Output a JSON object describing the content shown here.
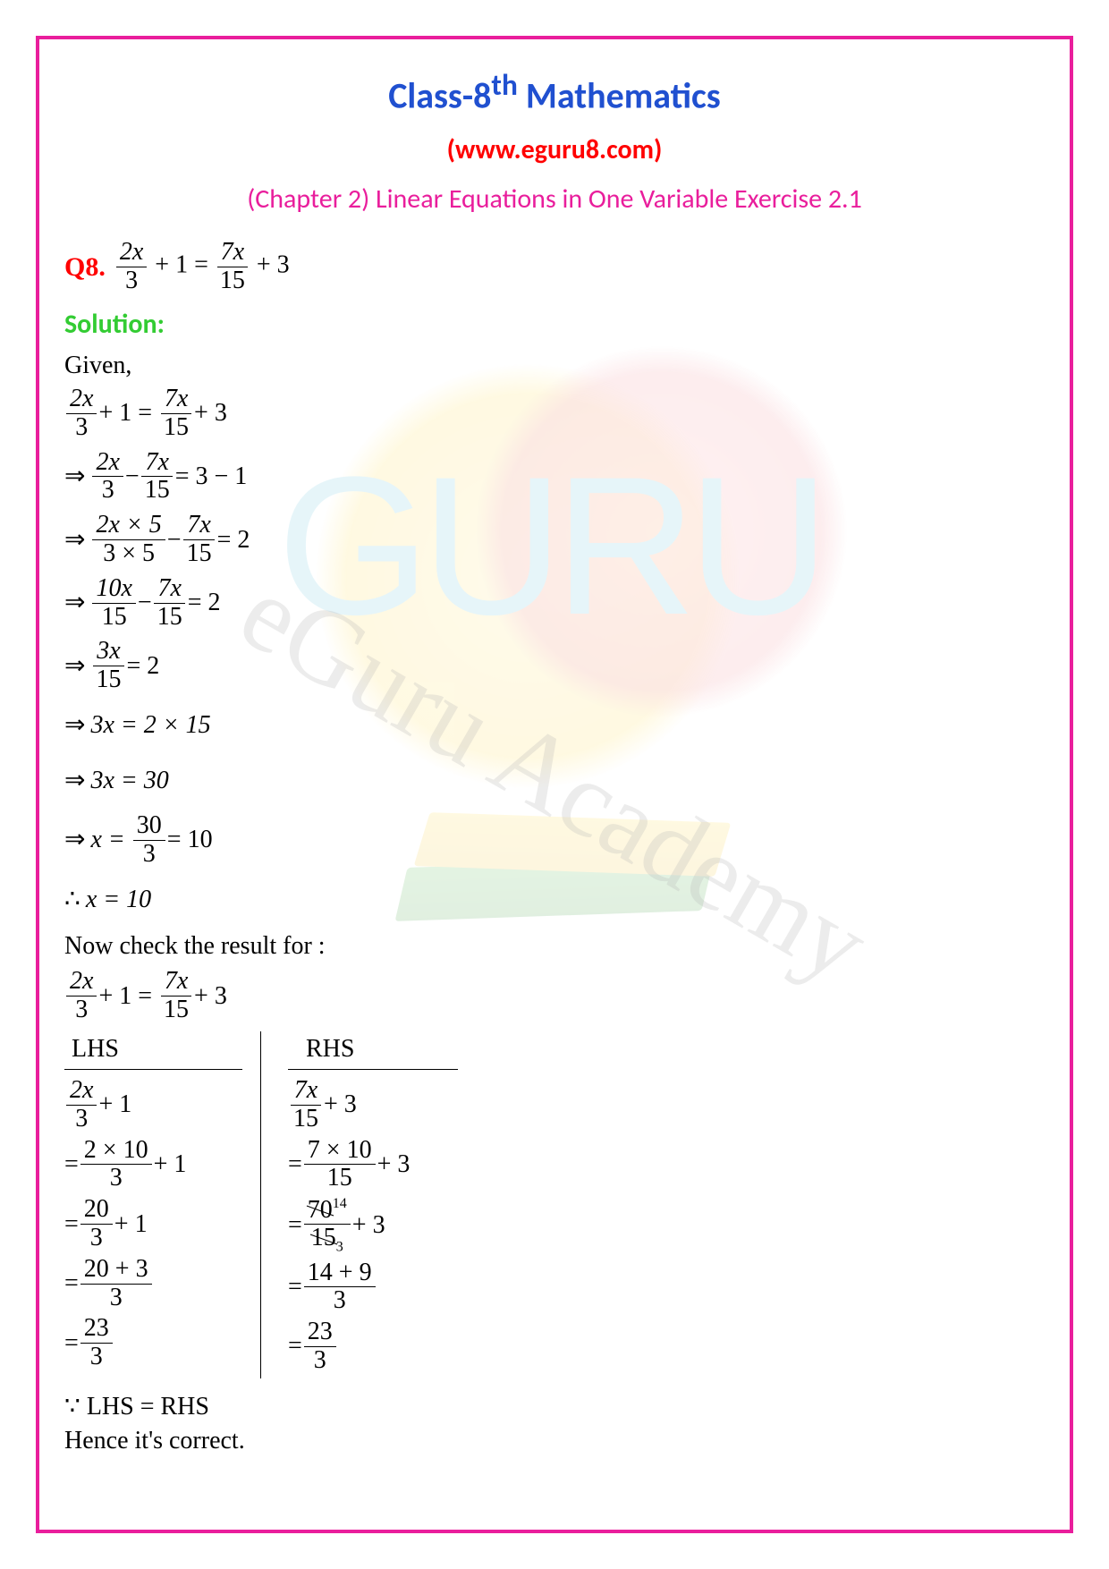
{
  "colors": {
    "border": "#e91e9c",
    "title": "#2050d0",
    "website": "#ff0000",
    "chapter": "#e91e9c",
    "qlabel": "#ff0000",
    "solution": "#33cc33",
    "text": "#000000"
  },
  "header": {
    "title_pre": "Class-8",
    "title_sup": "th",
    "title_post": " Mathematics",
    "website": "(www.eguru8.com)",
    "chapter": "(Chapter 2) Linear Equations in One Variable Exercise 2.1"
  },
  "question": {
    "label": "Q8.",
    "lhs_num": "2x",
    "lhs_den": "3",
    "lhs_plus": "+ 1",
    "rhs_num": "7x",
    "rhs_den": "15",
    "rhs_plus": "+ 3"
  },
  "solution_label": "Solution:",
  "given_label": "Given,",
  "steps": {
    "s1": {
      "ln": "2x",
      "ld": "3",
      "lp": "+ 1 =",
      "rn": "7x",
      "rd": "15",
      "rp": "+ 3"
    },
    "s2": {
      "ar": "⇒",
      "ln": "2x",
      "ld": "3",
      "op": "−",
      "rn": "7x",
      "rd": "15",
      "eq": "= 3 − 1"
    },
    "s3": {
      "ar": "⇒",
      "ln": "2x × 5",
      "ld": "3 × 5",
      "op": "−",
      "rn": "7x",
      "rd": "15",
      "eq": "= 2"
    },
    "s4": {
      "ar": "⇒",
      "ln": "10x",
      "ld": "15",
      "op": "−",
      "rn": "7x",
      "rd": "15",
      "eq": "= 2"
    },
    "s5": {
      "ar": "⇒",
      "ln": "3x",
      "ld": "15",
      "eq": "= 2"
    },
    "s6": {
      "ar": "⇒",
      "tx": "3x = 2 × 15"
    },
    "s7": {
      "ar": "⇒",
      "tx": "3x = 30"
    },
    "s8": {
      "ar": "⇒",
      "pre": "x =",
      "ln": "30",
      "ld": "3",
      "eq": "= 10"
    },
    "s9": {
      "ar": "∴",
      "tx": "x = 10"
    }
  },
  "check_label": "Now check the result for :",
  "check_eq": {
    "ln": "2x",
    "ld": "3",
    "lp": "+ 1 =",
    "rn": "7x",
    "rd": "15",
    "rp": "+ 3"
  },
  "lhs_header": "LHS",
  "rhs_header": "RHS",
  "lhs_rows": {
    "r1": {
      "n": "2x",
      "d": "3",
      "p": "+ 1"
    },
    "r2": {
      "pre": "=",
      "n": "2 × 10",
      "d": "3",
      "p": "+ 1"
    },
    "r3": {
      "pre": "=",
      "n": "20",
      "d": "3",
      "p": "+ 1"
    },
    "r4": {
      "pre": "=",
      "n": "20 + 3",
      "d": "3"
    },
    "r5": {
      "pre": "=",
      "n": "23",
      "d": "3"
    }
  },
  "rhs_rows": {
    "r1": {
      "n": "7x",
      "d": "15",
      "p": "+ 3"
    },
    "r2": {
      "pre": "=",
      "n": "7 × 10",
      "d": "15",
      "p": "+ 3"
    },
    "r3": {
      "pre": "=",
      "n_strike": "70",
      "n_sup": "14",
      "d_strike": "15",
      "d_sub": "3",
      "p": "+ 3"
    },
    "r4": {
      "pre": "=",
      "n": "14 + 9",
      "d": "3"
    },
    "r5": {
      "pre": "=",
      "n": "23",
      "d": "3"
    }
  },
  "conclusion1": "∵ LHS = RHS",
  "conclusion2": "Hence it's correct.",
  "watermark": "eGuru Academy"
}
